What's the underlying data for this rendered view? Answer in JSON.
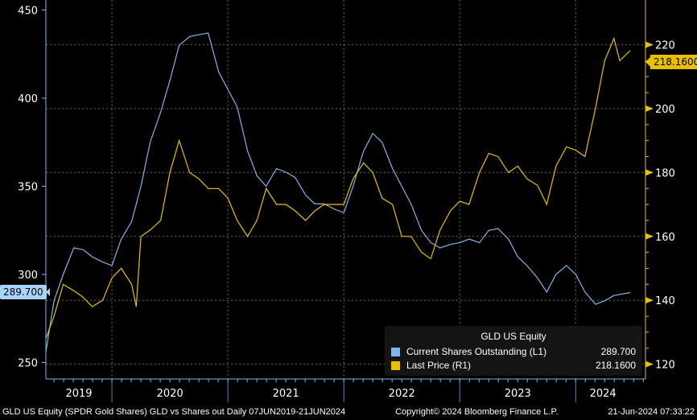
{
  "chart_data": {
    "type": "line",
    "title": "GLD US Equity",
    "legend_position": "bottom-right",
    "x_axis": {
      "ticks": [
        "2019",
        "2020",
        "2021",
        "2022",
        "2023",
        "2024"
      ],
      "range": [
        "2019-06-07",
        "2024-06-21"
      ]
    },
    "y_left": {
      "ticks": [
        250,
        300,
        350,
        400,
        450
      ],
      "range": [
        243,
        452
      ]
    },
    "y_right": {
      "ticks": [
        120,
        140,
        160,
        180,
        200,
        220
      ],
      "range": [
        118,
        231
      ]
    },
    "grid": true,
    "series": [
      {
        "name": "Current Shares Outstanding",
        "axis_label": "(L1)",
        "axis": "left",
        "color": "#7eb6ec",
        "last_value": "289.700",
        "x": [
          2019.43,
          2019.5,
          2019.58,
          2019.67,
          2019.75,
          2019.83,
          2019.92,
          2020.0,
          2020.08,
          2020.17,
          2020.25,
          2020.33,
          2020.42,
          2020.5,
          2020.58,
          2020.67,
          2020.75,
          2020.83,
          2020.92,
          2021.0,
          2021.08,
          2021.17,
          2021.25,
          2021.33,
          2021.42,
          2021.5,
          2021.58,
          2021.67,
          2021.75,
          2021.83,
          2021.92,
          2022.0,
          2022.08,
          2022.17,
          2022.25,
          2022.33,
          2022.42,
          2022.5,
          2022.58,
          2022.67,
          2022.75,
          2022.83,
          2022.92,
          2023.0,
          2023.08,
          2023.17,
          2023.25,
          2023.33,
          2023.42,
          2023.5,
          2023.58,
          2023.67,
          2023.75,
          2023.83,
          2023.92,
          2024.0,
          2024.08,
          2024.17,
          2024.25,
          2024.33,
          2024.47
        ],
        "values": [
          256,
          285,
          300,
          315,
          314,
          310,
          307,
          305,
          320,
          330,
          350,
          375,
          392,
          410,
          430,
          435,
          436,
          437,
          415,
          405,
          395,
          370,
          356,
          350,
          360,
          358,
          355,
          345,
          340,
          340,
          337,
          335,
          350,
          370,
          380,
          375,
          360,
          350,
          340,
          325,
          318,
          315,
          317,
          318,
          320,
          318,
          325,
          326,
          320,
          310,
          305,
          298,
          290,
          300,
          305,
          300,
          290,
          283,
          285,
          288,
          289.7
        ]
      },
      {
        "name": "Last Price",
        "axis_label": "(R1)",
        "axis": "right",
        "color": "#e8c000",
        "last_value": "218.1600",
        "x": [
          2019.43,
          2019.5,
          2019.58,
          2019.67,
          2019.75,
          2019.83,
          2019.92,
          2020.0,
          2020.08,
          2020.17,
          2020.21,
          2020.25,
          2020.33,
          2020.42,
          2020.5,
          2020.58,
          2020.67,
          2020.75,
          2020.83,
          2020.92,
          2021.0,
          2021.08,
          2021.17,
          2021.25,
          2021.33,
          2021.42,
          2021.5,
          2021.58,
          2021.67,
          2021.75,
          2021.83,
          2021.92,
          2022.0,
          2022.08,
          2022.17,
          2022.25,
          2022.33,
          2022.42,
          2022.5,
          2022.58,
          2022.67,
          2022.75,
          2022.83,
          2022.92,
          2023.0,
          2023.08,
          2023.17,
          2023.25,
          2023.33,
          2023.42,
          2023.5,
          2023.58,
          2023.67,
          2023.75,
          2023.83,
          2023.92,
          2024.0,
          2024.08,
          2024.17,
          2024.25,
          2024.33,
          2024.38,
          2024.47
        ],
        "values": [
          128,
          135,
          145,
          143,
          141,
          138,
          140,
          147,
          150,
          145,
          138,
          160,
          162,
          165,
          180,
          190,
          180,
          178,
          175,
          175,
          172,
          165,
          160,
          165,
          175,
          170,
          170,
          168,
          165,
          168,
          170,
          170,
          170,
          178,
          183,
          180,
          172,
          170,
          160,
          160,
          155,
          153,
          162,
          168,
          171,
          170,
          180,
          186,
          185,
          180,
          182,
          178,
          176,
          170,
          182,
          188,
          187,
          185,
          200,
          215,
          222,
          215,
          218.16
        ]
      }
    ]
  },
  "tags": {
    "left": "289.700",
    "right": "218.1600"
  },
  "footer": {
    "description": "GLD US Equity (SPDR Gold Shares) GLD vs Shares out  Daily 07JUN2019-21JUN2024",
    "copyright": "Copyright© 2024 Bloomberg Finance L.P.",
    "timestamp": "21-Jun-2024 07:33:22"
  }
}
